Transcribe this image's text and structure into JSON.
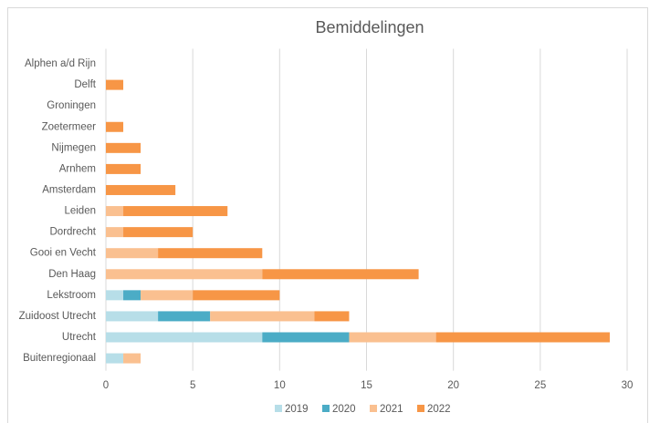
{
  "chart_data": {
    "type": "stacked-bar-horizontal",
    "title": "Bemiddelingen",
    "categories": [
      "Alphen a/d Rijn",
      "Delft",
      "Groningen",
      "Zoetermeer",
      "Nijmegen",
      "Arnhem",
      "Amsterdam",
      "Leiden",
      "Dordrecht",
      "Gooi en Vecht",
      "Den Haag",
      "Lekstroom",
      "Zuidoost Utrecht",
      "Utrecht",
      "Buitenregionaal"
    ],
    "series": [
      {
        "name": "2019",
        "color": "#b7dee8",
        "values": [
          0,
          0,
          0,
          0,
          0,
          0,
          0,
          0,
          0,
          0,
          0,
          1,
          3,
          9,
          1
        ]
      },
      {
        "name": "2020",
        "color": "#4bacc6",
        "values": [
          0,
          0,
          0,
          0,
          0,
          0,
          0,
          0,
          0,
          0,
          0,
          1,
          3,
          5,
          0
        ]
      },
      {
        "name": "2021",
        "color": "#fac090",
        "values": [
          0,
          0,
          0,
          0,
          0,
          0,
          0,
          1,
          1,
          3,
          9,
          3,
          6,
          5,
          1
        ]
      },
      {
        "name": "2022",
        "color": "#f79646",
        "values": [
          0,
          1,
          0,
          1,
          2,
          2,
          4,
          6,
          4,
          6,
          9,
          5,
          2,
          10,
          0
        ]
      }
    ],
    "xlim": [
      0,
      30
    ],
    "xticks": [
      0,
      5,
      10,
      15,
      20,
      25,
      30
    ],
    "grid": true,
    "legend": "bottom"
  }
}
